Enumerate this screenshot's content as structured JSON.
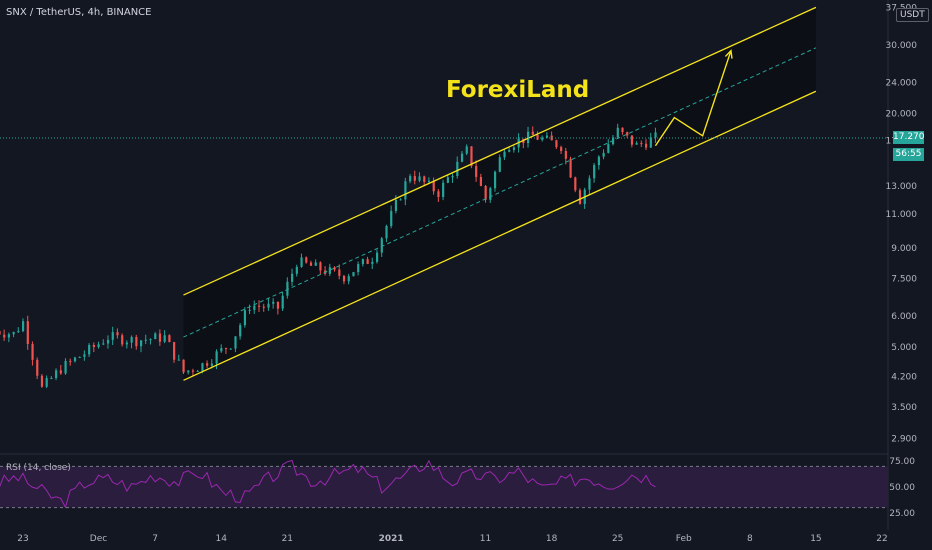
{
  "header": {
    "symbol": "SNX / TetherUS, 4h, BINANCE",
    "watermark": "ForexiLand",
    "currency": "USDT"
  },
  "price_axis": {
    "labels": [
      "37.500",
      "30.000",
      "24.000",
      "20.000",
      "17.000",
      "13.000",
      "11.000",
      "9.000",
      "7.500",
      "6.000",
      "5.000",
      "4.200",
      "3.500",
      "2.900"
    ],
    "last_price": "17.270",
    "countdown": "56:55"
  },
  "time_axis": {
    "labels": [
      "23",
      "Dec",
      "7",
      "14",
      "21",
      "2021",
      "11",
      "18",
      "25",
      "Feb",
      "8",
      "15",
      "22"
    ]
  },
  "rsi": {
    "title": "RSI (14, close)",
    "labels": [
      "75.00",
      "50.00",
      "25.00"
    ]
  },
  "colors": {
    "background": "#131722",
    "channel": "#f5e31a",
    "midline": "#26a69a",
    "up_candle": "#26a69a",
    "down_candle": "#ef5350",
    "rsi_line": "#9c27b0",
    "rsi_band": "#2a1d3d",
    "price_tag": "#26a69a"
  },
  "chart_data": {
    "type": "candlestick",
    "symbol": "SNX / TetherUS",
    "timeframe": "4h",
    "exchange": "BINANCE",
    "y_scale": "log",
    "ylim": [
      2.6,
      37.5
    ],
    "x_range": [
      "Nov 20",
      "Feb 22"
    ],
    "price_path": [
      {
        "x": "Nov 20",
        "y": 5.5
      },
      {
        "x": "Nov 22",
        "y": 5.4
      },
      {
        "x": "Nov 23",
        "y": 5.8
      },
      {
        "x": "Nov 25",
        "y": 3.9
      },
      {
        "x": "Nov 27",
        "y": 4.4
      },
      {
        "x": "Nov 30",
        "y": 4.9
      },
      {
        "x": "Dec 2",
        "y": 5.3
      },
      {
        "x": "Dec 5",
        "y": 5.2
      },
      {
        "x": "Dec 8",
        "y": 5.3
      },
      {
        "x": "Dec 10",
        "y": 4.3
      },
      {
        "x": "Dec 12",
        "y": 4.5
      },
      {
        "x": "Dec 15",
        "y": 5.1
      },
      {
        "x": "Dec 17",
        "y": 6.4
      },
      {
        "x": "Dec 20",
        "y": 6.3
      },
      {
        "x": "Dec 22",
        "y": 8.3
      },
      {
        "x": "Dec 24",
        "y": 8.0
      },
      {
        "x": "Dec 27",
        "y": 7.6
      },
      {
        "x": "Dec 30",
        "y": 8.5
      },
      {
        "x": "Jan 3",
        "y": 14.0
      },
      {
        "x": "Jan 6",
        "y": 12.5
      },
      {
        "x": "Jan 9",
        "y": 16.0
      },
      {
        "x": "Jan 11",
        "y": 12.0
      },
      {
        "x": "Jan 13",
        "y": 16.5
      },
      {
        "x": "Jan 16",
        "y": 17.5
      },
      {
        "x": "Jan 19",
        "y": 16.5
      },
      {
        "x": "Jan 21",
        "y": 12.0
      },
      {
        "x": "Jan 23",
        "y": 15.5
      },
      {
        "x": "Jan 25",
        "y": 18.0
      },
      {
        "x": "Jan 27",
        "y": 16.5
      },
      {
        "x": "Jan 29",
        "y": 17.3
      }
    ],
    "last_price": 17.27,
    "channel": {
      "upper": [
        {
          "x": "Dec 10",
          "y": 6.8
        },
        {
          "x": "Feb 15",
          "y": 37.5
        }
      ],
      "lower": [
        {
          "x": "Dec 10",
          "y": 4.1
        },
        {
          "x": "Feb 15",
          "y": 22.8
        }
      ],
      "mid": [
        {
          "x": "Dec 10",
          "y": 5.3
        },
        {
          "x": "Feb 15",
          "y": 29.5
        }
      ]
    },
    "projection": [
      {
        "x": "Jan 29",
        "y": 16.5
      },
      {
        "x": "Jan 31",
        "y": 19.5
      },
      {
        "x": "Feb 3",
        "y": 17.5
      },
      {
        "x": "Feb 6",
        "y": 29.0
      }
    ],
    "rsi": {
      "name": "RSI (14, close)",
      "levels": [
        70,
        30
      ],
      "ylim": [
        20,
        80
      ],
      "values": [
        52,
        60,
        47,
        35,
        55,
        58,
        50,
        62,
        55,
        65,
        45,
        40,
        58,
        70,
        55,
        62,
        68,
        50,
        60,
        75,
        55,
        62,
        58,
        65,
        48,
        55,
        60,
        52,
        63,
        57
      ]
    }
  }
}
